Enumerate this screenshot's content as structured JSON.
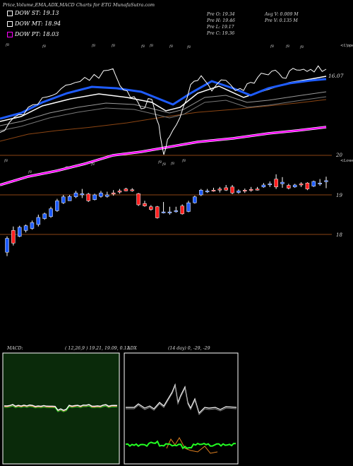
{
  "header": {
    "title": "Price,Volume,EMA,ADX,MACD Charts for ETG",
    "watermark": "MunafaSutra.com"
  },
  "legend": [
    {
      "label": "DOW ST: 19.13",
      "color": "#ffffff"
    },
    {
      "label": "DOW MT: 18.94",
      "color": "#ffffff"
    },
    {
      "label": "DOW PT: 18.03",
      "color": "#ff00ff"
    }
  ],
  "stats": {
    "open": "Pre   O: 19.34",
    "high": "Pre   H: 19.46",
    "low": "Pre   L: 19.17",
    "close": "Pre   C: 19.36",
    "avg_vol": "Avg V: 0.009 M",
    "pre_vol": "Pre   V: 0.135 M"
  },
  "labels": {
    "upper_right": "<Upper",
    "lower_right": "<Lower",
    "ema_value": "16.07",
    "price_20": "20",
    "price_19": "19",
    "price_18": "18",
    "point_marker": "f8"
  },
  "macd": {
    "label": "MACD:",
    "params": "( 12,26,9 ) 19.21, 19.09, 0.12"
  },
  "adx": {
    "label": "ADX",
    "params": "(14  day) 0, -29, -29"
  },
  "colors": {
    "up": "#1e5cff",
    "down": "#ff2020",
    "ema_long": "#8b4513",
    "ema_magenta": "#ff00ff",
    "macd_bg": "#0a2a0a",
    "adx_green": "#22ff22",
    "adx_orange": "#e08020"
  },
  "chart_data": {
    "type": "candlestick",
    "symbol": "ETG",
    "y_ticks": [
      18,
      19,
      20
    ],
    "candles": [
      {
        "o": 17.55,
        "h": 17.95,
        "l": 17.45,
        "c": 17.9,
        "dir": "up"
      },
      {
        "o": 17.78,
        "h": 18.2,
        "l": 17.72,
        "c": 18.1,
        "dir": "down"
      },
      {
        "o": 17.95,
        "h": 18.22,
        "l": 17.93,
        "c": 18.18,
        "dir": "up"
      },
      {
        "o": 18.1,
        "h": 18.25,
        "l": 18.05,
        "c": 18.22,
        "dir": "up"
      },
      {
        "o": 18.15,
        "h": 18.35,
        "l": 18.12,
        "c": 18.3,
        "dir": "up"
      },
      {
        "o": 18.25,
        "h": 18.5,
        "l": 18.2,
        "c": 18.43,
        "dir": "up"
      },
      {
        "o": 18.4,
        "h": 18.55,
        "l": 18.37,
        "c": 18.52,
        "dir": "up"
      },
      {
        "o": 18.45,
        "h": 18.7,
        "l": 18.42,
        "c": 18.65,
        "dir": "up"
      },
      {
        "o": 18.6,
        "h": 18.9,
        "l": 18.57,
        "c": 18.85,
        "dir": "up"
      },
      {
        "o": 18.8,
        "h": 19.0,
        "l": 18.77,
        "c": 18.95,
        "dir": "up"
      },
      {
        "o": 18.85,
        "h": 19.0,
        "l": 18.85,
        "c": 18.96,
        "dir": "up"
      },
      {
        "o": 18.95,
        "h": 19.1,
        "l": 18.92,
        "c": 19.05,
        "dir": "up"
      },
      {
        "o": 19.0,
        "h": 19.15,
        "l": 18.92,
        "c": 19.03,
        "dir": "up"
      },
      {
        "o": 19.02,
        "h": 19.05,
        "l": 18.82,
        "c": 18.85,
        "dir": "down"
      },
      {
        "o": 18.88,
        "h": 19.03,
        "l": 18.86,
        "c": 19.0,
        "dir": "up"
      },
      {
        "o": 18.96,
        "h": 19.1,
        "l": 18.93,
        "c": 19.05,
        "dir": "up"
      },
      {
        "o": 19.0,
        "h": 19.08,
        "l": 18.93,
        "c": 18.96,
        "dir": "up"
      },
      {
        "o": 19.05,
        "h": 19.12,
        "l": 18.98,
        "c": 19.02,
        "dir": "down"
      },
      {
        "o": 19.1,
        "h": 19.15,
        "l": 19.03,
        "c": 19.07,
        "dir": "down"
      },
      {
        "o": 19.15,
        "h": 19.18,
        "l": 19.09,
        "c": 19.1,
        "dir": "down"
      },
      {
        "o": 19.13,
        "h": 19.17,
        "l": 19.08,
        "c": 19.12,
        "dir": "down"
      },
      {
        "o": 19.03,
        "h": 19.05,
        "l": 18.72,
        "c": 18.75,
        "dir": "down"
      },
      {
        "o": 18.78,
        "h": 18.85,
        "l": 18.7,
        "c": 18.72,
        "dir": "down"
      },
      {
        "o": 18.7,
        "h": 18.74,
        "l": 18.6,
        "c": 18.63,
        "dir": "down"
      },
      {
        "o": 18.7,
        "h": 18.72,
        "l": 18.4,
        "c": 18.42,
        "dir": "down"
      },
      {
        "o": 18.56,
        "h": 18.82,
        "l": 18.53,
        "c": 18.57,
        "dir": "up"
      },
      {
        "o": 18.54,
        "h": 18.7,
        "l": 18.5,
        "c": 18.57,
        "dir": "up"
      },
      {
        "o": 18.6,
        "h": 18.7,
        "l": 18.55,
        "c": 18.6,
        "dir": "up"
      },
      {
        "o": 18.72,
        "h": 18.76,
        "l": 18.5,
        "c": 18.52,
        "dir": "down"
      },
      {
        "o": 18.58,
        "h": 18.85,
        "l": 18.56,
        "c": 18.8,
        "dir": "up"
      },
      {
        "o": 18.8,
        "h": 18.98,
        "l": 18.78,
        "c": 18.95,
        "dir": "up"
      },
      {
        "o": 19.0,
        "h": 19.15,
        "l": 18.97,
        "c": 19.12,
        "dir": "up"
      },
      {
        "o": 19.1,
        "h": 19.15,
        "l": 19.05,
        "c": 19.08,
        "dir": "up"
      },
      {
        "o": 19.12,
        "h": 19.18,
        "l": 19.08,
        "c": 19.1,
        "dir": "down"
      },
      {
        "o": 19.12,
        "h": 19.2,
        "l": 19.06,
        "c": 19.15,
        "dir": "down"
      },
      {
        "o": 19.18,
        "h": 19.25,
        "l": 19.1,
        "c": 19.12,
        "dir": "down"
      },
      {
        "o": 19.2,
        "h": 19.25,
        "l": 19.02,
        "c": 19.05,
        "dir": "down"
      },
      {
        "o": 19.06,
        "h": 19.14,
        "l": 19.03,
        "c": 19.1,
        "dir": "up"
      },
      {
        "o": 19.1,
        "h": 19.16,
        "l": 19.05,
        "c": 19.12,
        "dir": "down"
      },
      {
        "o": 19.12,
        "h": 19.2,
        "l": 19.08,
        "c": 19.14,
        "dir": "down"
      },
      {
        "o": 19.15,
        "h": 19.2,
        "l": 19.11,
        "c": 19.12,
        "dir": "down"
      },
      {
        "o": 19.2,
        "h": 19.3,
        "l": 19.18,
        "c": 19.25,
        "dir": "up"
      },
      {
        "o": 19.26,
        "h": 19.34,
        "l": 19.2,
        "c": 19.28,
        "dir": "up"
      },
      {
        "o": 19.4,
        "h": 19.52,
        "l": 19.15,
        "c": 19.2,
        "dir": "down"
      },
      {
        "o": 19.28,
        "h": 19.45,
        "l": 19.18,
        "c": 19.32,
        "dir": "up"
      },
      {
        "o": 19.24,
        "h": 19.28,
        "l": 19.14,
        "c": 19.17,
        "dir": "down"
      },
      {
        "o": 19.2,
        "h": 19.28,
        "l": 19.18,
        "c": 19.25,
        "dir": "up"
      },
      {
        "o": 19.28,
        "h": 19.32,
        "l": 19.2,
        "c": 19.25,
        "dir": "down"
      },
      {
        "o": 19.15,
        "h": 19.32,
        "l": 19.12,
        "c": 19.3,
        "dir": "down"
      },
      {
        "o": 19.22,
        "h": 19.36,
        "l": 19.2,
        "c": 19.34,
        "dir": "up"
      },
      {
        "o": 19.28,
        "h": 19.4,
        "l": 19.23,
        "c": 19.3,
        "dir": "up"
      },
      {
        "o": 19.34,
        "h": 19.46,
        "l": 19.17,
        "c": 19.36,
        "dir": "up"
      }
    ],
    "ema_series": [
      {
        "name": "DOW ST",
        "values": [
          18.55,
          18.62,
          18.7,
          18.75,
          18.82,
          18.9,
          18.98,
          19.02,
          19.05,
          19.08,
          19.1,
          19.12,
          19.14,
          19.16,
          19.14,
          19.06,
          18.98,
          18.92,
          18.98,
          19.05,
          19.08,
          19.1,
          19.13
        ]
      },
      {
        "name": "DOW MT",
        "values": [
          18.4,
          18.46,
          18.52,
          18.58,
          18.64,
          18.7,
          18.76,
          18.82,
          18.86,
          18.9,
          18.93,
          18.95,
          18.96,
          18.96,
          18.94,
          18.9,
          18.86,
          18.85,
          18.86,
          18.88,
          18.9,
          18.92,
          18.94
        ]
      },
      {
        "name": "DOW PT",
        "values": [
          17.4,
          17.48,
          17.55,
          17.62,
          17.68,
          17.74,
          17.8,
          17.86,
          17.9,
          17.94,
          17.97,
          18.0,
          18.03
        ]
      }
    ]
  }
}
